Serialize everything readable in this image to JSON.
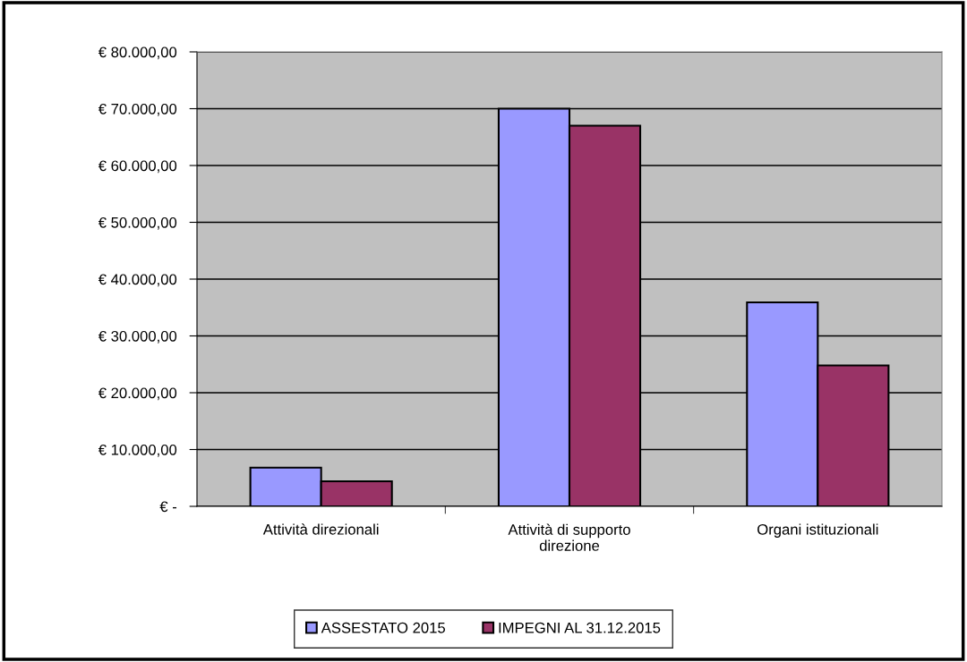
{
  "chart_data": {
    "type": "bar",
    "categories": [
      "Attività direzionali",
      "Attività di supporto\ndirezione",
      "Organi istituzionali"
    ],
    "series": [
      {
        "name": "ASSESTATO 2015",
        "color": "#9999ff",
        "values": [
          6800,
          70000,
          35900
        ]
      },
      {
        "name": "IMPEGNI AL 31.12.2015",
        "color": "#993366",
        "values": [
          4400,
          67000,
          24800
        ]
      }
    ],
    "ylim": [
      0,
      80000
    ],
    "yticks": [
      {
        "value": 0,
        "label": "€ -"
      },
      {
        "value": 10000,
        "label": "€ 10.000,00"
      },
      {
        "value": 20000,
        "label": "€ 20.000,00"
      },
      {
        "value": 30000,
        "label": "€ 30.000,00"
      },
      {
        "value": 40000,
        "label": "€ 40.000,00"
      },
      {
        "value": 50000,
        "label": "€ 50.000,00"
      },
      {
        "value": 60000,
        "label": "€ 60.000,00"
      },
      {
        "value": 70000,
        "label": "€ 70.000,00"
      },
      {
        "value": 80000,
        "label": "€ 80.000,00"
      }
    ],
    "grid": "y",
    "legend": "bottom"
  }
}
